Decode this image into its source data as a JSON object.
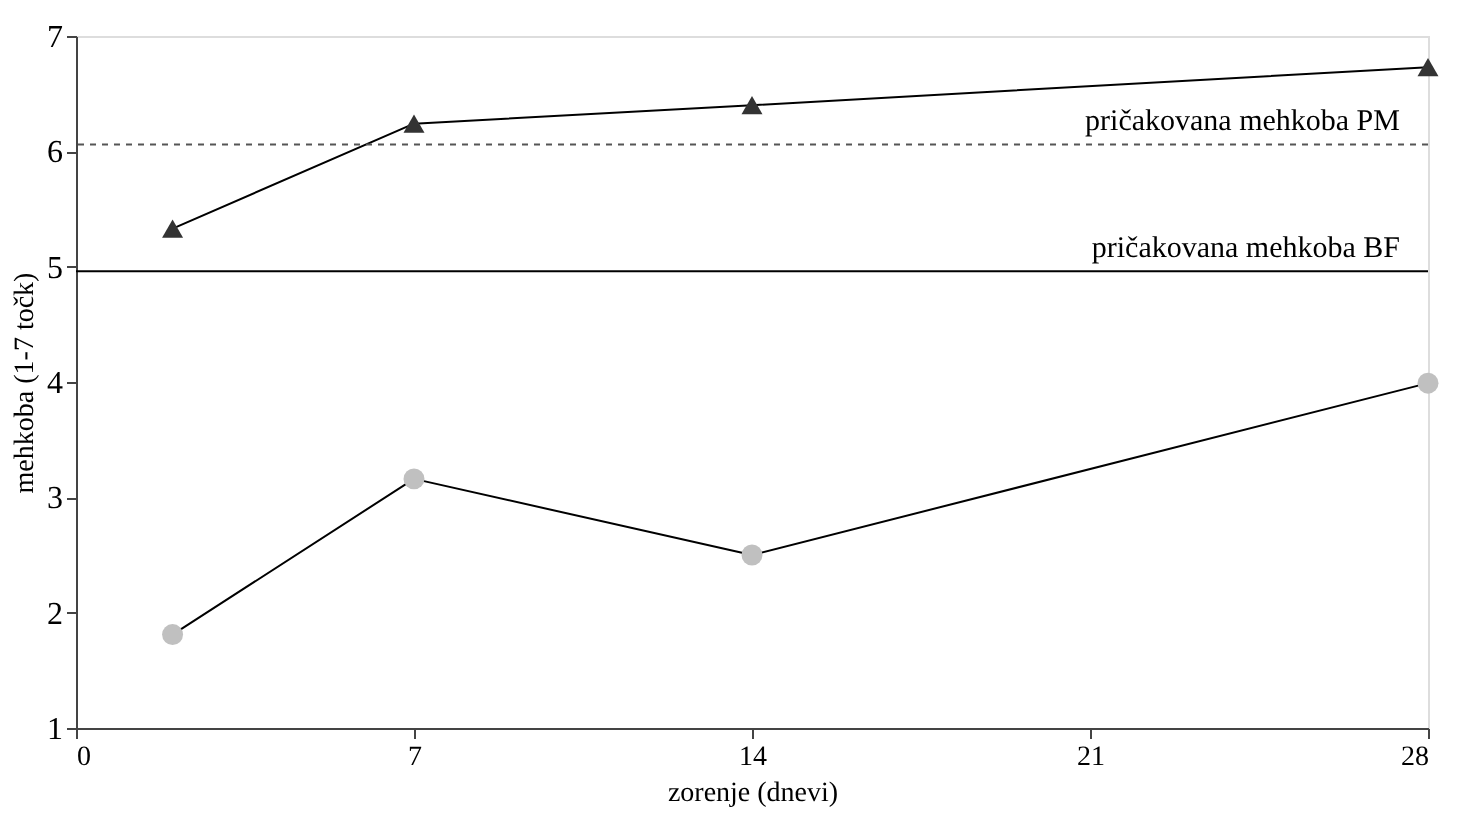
{
  "chart_data": {
    "type": "line",
    "xlabel": "zorenje (dnevi)",
    "ylabel": "mehkoba (1-7 točk)",
    "x": [
      2,
      7,
      14,
      28
    ],
    "series": [
      {
        "color": "#333333",
        "marker": "triangle",
        "values": [
          5.33,
          6.24,
          6.4,
          6.73
        ]
      },
      {
        "color": "#c0c0c0",
        "marker": "circle",
        "values": [
          1.81,
          3.16,
          2.5,
          3.99
        ]
      }
    ],
    "ref_lines": [
      {
        "axis": "y",
        "value": 6.06,
        "label": "pričakovana mehkoba PM",
        "line_style": "dashed",
        "color": "#555555"
      },
      {
        "axis": "y",
        "value": 4.96,
        "label": "pričakovana mehkoba BF",
        "line_style": "solid",
        "color": "#000000"
      }
    ],
    "xlim": [
      0,
      28
    ],
    "xticks": [
      0,
      7,
      14,
      21,
      28
    ],
    "ylim": [
      1,
      7
    ],
    "yticks": [
      1,
      2,
      3,
      4,
      5,
      6,
      7
    ]
  }
}
